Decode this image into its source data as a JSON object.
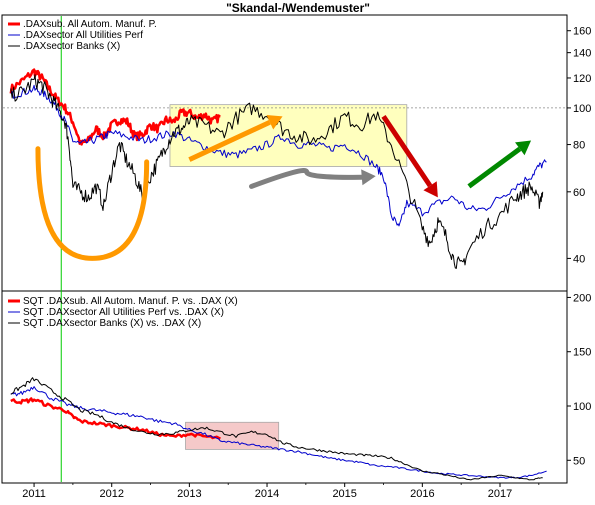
{
  "chart_data": [
    {
      "type": "line",
      "title": "\"Skandal-/Wendemuster\"",
      "yscale": "log",
      "ylim": [
        33,
        175
      ],
      "yticks": [
        40,
        60,
        80,
        100,
        120,
        140,
        160
      ],
      "y_reference_line": 100,
      "grid": false,
      "legend_position": "top-left",
      "series": [
        {
          "name": ".DAXsub. All Autom. Manuf. P.",
          "color": "#ff0000",
          "points": [
            [
              2010.7,
              112
            ],
            [
              2010.85,
              118
            ],
            [
              2011.0,
              125
            ],
            [
              2011.1,
              120
            ],
            [
              2011.2,
              112
            ],
            [
              2011.3,
              105
            ],
            [
              2011.4,
              100
            ],
            [
              2011.5,
              92
            ],
            [
              2011.6,
              80
            ],
            [
              2011.7,
              82
            ],
            [
              2011.8,
              88
            ],
            [
              2011.9,
              84
            ],
            [
              2012.0,
              90
            ],
            [
              2012.1,
              93
            ],
            [
              2012.2,
              92
            ],
            [
              2012.3,
              84
            ],
            [
              2012.4,
              85
            ],
            [
              2012.5,
              90
            ],
            [
              2012.6,
              88
            ],
            [
              2012.7,
              93
            ],
            [
              2012.8,
              92
            ],
            [
              2012.9,
              97
            ],
            [
              2013.0,
              97
            ],
            [
              2013.1,
              94
            ],
            [
              2013.2,
              96
            ],
            [
              2013.3,
              92
            ],
            [
              2013.4,
              95
            ]
          ]
        },
        {
          "name": ".DAXsector All Utilities Perf",
          "color": "#0000cc",
          "points": [
            [
              2010.7,
              108
            ],
            [
              2010.85,
              110
            ],
            [
              2011.0,
              112
            ],
            [
              2011.1,
              110
            ],
            [
              2011.2,
              106
            ],
            [
              2011.3,
              100
            ],
            [
              2011.4,
              92
            ],
            [
              2011.5,
              82
            ],
            [
              2011.6,
              80
            ],
            [
              2011.75,
              82
            ],
            [
              2011.9,
              84
            ],
            [
              2012.0,
              86
            ],
            [
              2012.2,
              84
            ],
            [
              2012.4,
              82
            ],
            [
              2012.6,
              84
            ],
            [
              2012.8,
              86
            ],
            [
              2013.0,
              82
            ],
            [
              2013.2,
              79
            ],
            [
              2013.4,
              76
            ],
            [
              2013.6,
              75
            ],
            [
              2013.8,
              77
            ],
            [
              2014.0,
              80
            ],
            [
              2014.2,
              84
            ],
            [
              2014.4,
              80
            ],
            [
              2014.6,
              80
            ],
            [
              2014.8,
              78
            ],
            [
              2015.0,
              80
            ],
            [
              2015.2,
              76
            ],
            [
              2015.4,
              70
            ],
            [
              2015.5,
              66
            ],
            [
              2015.6,
              52
            ],
            [
              2015.7,
              48
            ],
            [
              2015.8,
              56
            ],
            [
              2016.0,
              53
            ],
            [
              2016.2,
              56
            ],
            [
              2016.4,
              58
            ],
            [
              2016.6,
              54
            ],
            [
              2016.8,
              54
            ],
            [
              2017.0,
              58
            ],
            [
              2017.2,
              62
            ],
            [
              2017.4,
              66
            ],
            [
              2017.5,
              70
            ],
            [
              2017.6,
              72
            ]
          ]
        },
        {
          "name": ".DAXsector Banks (X)",
          "color": "#000000",
          "points": [
            [
              2010.7,
              108
            ],
            [
              2010.85,
              110
            ],
            [
              2011.0,
              118
            ],
            [
              2011.1,
              115
            ],
            [
              2011.2,
              108
            ],
            [
              2011.3,
              100
            ],
            [
              2011.4,
              92
            ],
            [
              2011.45,
              80
            ],
            [
              2011.5,
              62
            ],
            [
              2011.6,
              60
            ],
            [
              2011.7,
              58
            ],
            [
              2011.8,
              62
            ],
            [
              2011.9,
              55
            ],
            [
              2012.0,
              68
            ],
            [
              2012.1,
              80
            ],
            [
              2012.2,
              72
            ],
            [
              2012.3,
              66
            ],
            [
              2012.4,
              58
            ],
            [
              2012.5,
              66
            ],
            [
              2012.6,
              72
            ],
            [
              2012.7,
              80
            ],
            [
              2012.8,
              86
            ],
            [
              2012.9,
              88
            ],
            [
              2013.0,
              92
            ],
            [
              2013.2,
              90
            ],
            [
              2013.4,
              85
            ],
            [
              2013.6,
              94
            ],
            [
              2013.8,
              100
            ],
            [
              2014.0,
              96
            ],
            [
              2014.2,
              88
            ],
            [
              2014.4,
              84
            ],
            [
              2014.6,
              82
            ],
            [
              2014.8,
              88
            ],
            [
              2015.0,
              95
            ],
            [
              2015.2,
              90
            ],
            [
              2015.4,
              96
            ],
            [
              2015.6,
              80
            ],
            [
              2015.8,
              62
            ],
            [
              2016.0,
              48
            ],
            [
              2016.1,
              44
            ],
            [
              2016.2,
              50
            ],
            [
              2016.3,
              46
            ],
            [
              2016.4,
              40
            ],
            [
              2016.5,
              38
            ],
            [
              2016.6,
              42
            ],
            [
              2016.8,
              48
            ],
            [
              2017.0,
              52
            ],
            [
              2017.2,
              58
            ],
            [
              2017.3,
              60
            ],
            [
              2017.4,
              62
            ],
            [
              2017.5,
              56
            ],
            [
              2017.55,
              60
            ]
          ]
        }
      ]
    },
    {
      "type": "line",
      "ylim": [
        30,
        205
      ],
      "yticks": [
        50,
        100,
        150,
        200
      ],
      "grid": false,
      "legend_position": "top-left",
      "series": [
        {
          "name": "SQT .DAXsub. All Autom. Manuf. P. vs. .DAX (X)",
          "color": "#ff0000",
          "points": [
            [
              2010.7,
              105
            ],
            [
              2010.85,
              104
            ],
            [
              2011.0,
              106
            ],
            [
              2011.2,
              100
            ],
            [
              2011.4,
              96
            ],
            [
              2011.5,
              90
            ],
            [
              2011.6,
              86
            ],
            [
              2011.8,
              84
            ],
            [
              2012.0,
              82
            ],
            [
              2012.2,
              80
            ],
            [
              2012.4,
              78
            ],
            [
              2012.6,
              74
            ],
            [
              2012.8,
              72
            ],
            [
              2013.0,
              74
            ],
            [
              2013.2,
              72
            ],
            [
              2013.4,
              70
            ]
          ]
        },
        {
          "name": "SQT .DAXsector All Utilities Perf vs. .DAX (X)",
          "color": "#0000cc",
          "points": [
            [
              2010.7,
              110
            ],
            [
              2010.85,
              112
            ],
            [
              2011.0,
              118
            ],
            [
              2011.2,
              108
            ],
            [
              2011.4,
              102
            ],
            [
              2011.6,
              98
            ],
            [
              2011.8,
              96
            ],
            [
              2012.0,
              94
            ],
            [
              2012.2,
              92
            ],
            [
              2012.4,
              90
            ],
            [
              2012.6,
              86
            ],
            [
              2012.8,
              84
            ],
            [
              2013.0,
              78
            ],
            [
              2013.2,
              74
            ],
            [
              2013.4,
              68
            ],
            [
              2013.6,
              66
            ],
            [
              2013.8,
              64
            ],
            [
              2014.0,
              62
            ],
            [
              2014.2,
              60
            ],
            [
              2014.4,
              58
            ],
            [
              2014.6,
              55
            ],
            [
              2014.8,
              52
            ],
            [
              2015.0,
              50
            ],
            [
              2015.2,
              48
            ],
            [
              2015.4,
              45
            ],
            [
              2015.6,
              44
            ],
            [
              2015.8,
              42
            ],
            [
              2016.0,
              40
            ],
            [
              2016.2,
              38
            ],
            [
              2016.4,
              37
            ],
            [
              2016.6,
              36
            ],
            [
              2016.8,
              35
            ],
            [
              2017.0,
              34
            ],
            [
              2017.2,
              34
            ],
            [
              2017.4,
              36
            ],
            [
              2017.6,
              40
            ]
          ]
        },
        {
          "name": "SQT .DAXsector Banks (X) vs. .DAX (X)",
          "color": "#000000",
          "points": [
            [
              2010.7,
              112
            ],
            [
              2010.85,
              118
            ],
            [
              2011.0,
              125
            ],
            [
              2011.2,
              115
            ],
            [
              2011.4,
              106
            ],
            [
              2011.6,
              96
            ],
            [
              2011.8,
              92
            ],
            [
              2012.0,
              85
            ],
            [
              2012.2,
              80
            ],
            [
              2012.4,
              76
            ],
            [
              2012.6,
              74
            ],
            [
              2012.8,
              75
            ],
            [
              2013.0,
              78
            ],
            [
              2013.2,
              80
            ],
            [
              2013.4,
              76
            ],
            [
              2013.6,
              72
            ],
            [
              2013.8,
              76
            ],
            [
              2014.0,
              74
            ],
            [
              2014.2,
              66
            ],
            [
              2014.4,
              62
            ],
            [
              2014.6,
              60
            ],
            [
              2014.8,
              58
            ],
            [
              2015.0,
              56
            ],
            [
              2015.2,
              55
            ],
            [
              2015.4,
              54
            ],
            [
              2015.6,
              52
            ],
            [
              2015.8,
              46
            ],
            [
              2016.0,
              40
            ],
            [
              2016.2,
              38
            ],
            [
              2016.4,
              35
            ],
            [
              2016.6,
              32
            ],
            [
              2016.8,
              34
            ],
            [
              2017.0,
              36
            ],
            [
              2017.2,
              34
            ],
            [
              2017.4,
              32
            ],
            [
              2017.55,
              34
            ]
          ]
        }
      ]
    }
  ],
  "x_axis": {
    "range": [
      2010.6,
      2017.85
    ],
    "tick_labels": [
      "2011",
      "2012",
      "2013",
      "2014",
      "2015",
      "2016",
      "2017"
    ],
    "tick_positions": [
      2011,
      2012,
      2013,
      2014,
      2015,
      2016,
      2017
    ]
  },
  "markers": {
    "vertical_line_x": 2011.35,
    "vertical_line_color": "#00cc00"
  },
  "annotations": [
    {
      "type": "arc",
      "color": "#ff9900",
      "desc": "u-shape"
    },
    {
      "type": "box",
      "color": "#ffffb3",
      "x_range": [
        2012.75,
        2015.8
      ],
      "y_range": [
        70,
        102
      ]
    },
    {
      "type": "arrow",
      "color": "#ff9900",
      "from": [
        2013.0,
        73
      ],
      "to": [
        2014.2,
        95
      ]
    },
    {
      "type": "arrow",
      "color": "#808080",
      "from": [
        2013.8,
        62
      ],
      "to": [
        2015.4,
        66
      ]
    },
    {
      "type": "arrow",
      "color": "#cc0000",
      "from": [
        2015.5,
        95
      ],
      "to": [
        2016.2,
        58
      ]
    },
    {
      "type": "arrow",
      "color": "#008800",
      "from": [
        2016.6,
        62
      ],
      "to": [
        2017.4,
        82
      ]
    },
    {
      "type": "box",
      "color": "#f4c0c0",
      "panel": 1,
      "x_range": [
        2012.95,
        2014.15
      ],
      "y_range": [
        60,
        85
      ]
    }
  ]
}
